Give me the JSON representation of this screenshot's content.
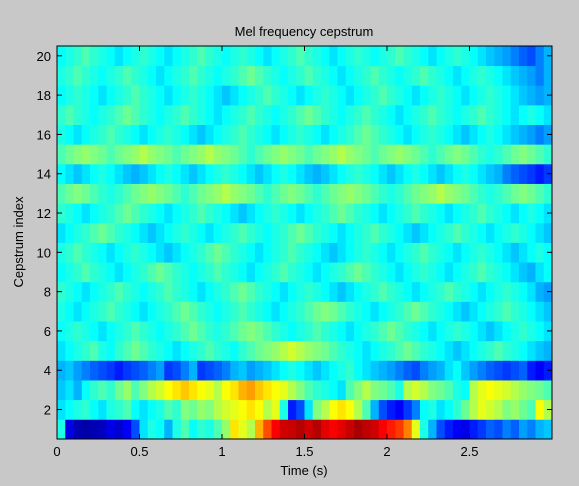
{
  "chart_data": {
    "type": "heatmap",
    "title": "Mel frequency cepstrum",
    "xlabel": "Time (s)",
    "ylabel": "Cepstrum index",
    "xlim": [
      0,
      3.0
    ],
    "ylim": [
      0.5,
      20.5
    ],
    "x_ticks": [
      0,
      0.5,
      1,
      1.5,
      2,
      2.5
    ],
    "x_tick_labels": [
      "0",
      "0.5",
      "1",
      "1.5",
      "2",
      "2.5"
    ],
    "y_ticks": [
      2,
      4,
      6,
      8,
      10,
      12,
      14,
      16,
      18,
      20
    ],
    "y_tick_labels": [
      "2",
      "4",
      "6",
      "8",
      "10",
      "12",
      "14",
      "16",
      "18",
      "20"
    ],
    "colormap": "jet",
    "rows": 20,
    "row_description": "cepstrum index 1 (bottom) to 20 (top)",
    "time_step": 0.05,
    "grid": false,
    "legend": "none",
    "values_scale": "relative intensity 0 (dark blue) to 1 (dark red)",
    "values": [
      [
        0.4,
        0.1,
        0.05,
        0.04,
        0.05,
        0.06,
        0.1,
        0.08,
        0.12,
        0.2,
        0.35,
        0.4,
        0.38,
        0.3,
        0.4,
        0.45,
        0.38,
        0.42,
        0.4,
        0.45,
        0.52,
        0.65,
        0.6,
        0.55,
        0.7,
        0.8,
        0.88,
        0.92,
        0.93,
        0.95,
        0.92,
        0.95,
        0.9,
        0.88,
        0.9,
        0.93,
        0.96,
        0.94,
        0.92,
        0.88,
        0.85,
        0.82,
        0.75,
        0.6,
        0.4,
        0.3,
        0.2,
        0.15,
        0.12,
        0.1,
        0.15,
        0.18,
        0.22,
        0.2,
        0.25,
        0.22,
        0.28,
        0.25,
        0.3,
        0.32
      ],
      [
        0.35,
        0.38,
        0.4,
        0.42,
        0.38,
        0.35,
        0.4,
        0.42,
        0.45,
        0.38,
        0.35,
        0.38,
        0.4,
        0.45,
        0.42,
        0.5,
        0.48,
        0.52,
        0.5,
        0.55,
        0.58,
        0.6,
        0.62,
        0.65,
        0.62,
        0.55,
        0.6,
        0.4,
        0.15,
        0.2,
        0.35,
        0.5,
        0.55,
        0.62,
        0.65,
        0.62,
        0.55,
        0.45,
        0.3,
        0.2,
        0.15,
        0.12,
        0.18,
        0.25,
        0.38,
        0.4,
        0.35,
        0.38,
        0.42,
        0.48,
        0.55,
        0.6,
        0.58,
        0.55,
        0.5,
        0.52,
        0.48,
        0.45,
        0.62,
        0.55
      ],
      [
        0.32,
        0.35,
        0.3,
        0.38,
        0.42,
        0.45,
        0.42,
        0.48,
        0.52,
        0.45,
        0.5,
        0.55,
        0.58,
        0.62,
        0.65,
        0.68,
        0.65,
        0.62,
        0.6,
        0.55,
        0.62,
        0.65,
        0.7,
        0.72,
        0.68,
        0.65,
        0.62,
        0.6,
        0.55,
        0.5,
        0.45,
        0.42,
        0.4,
        0.38,
        0.35,
        0.45,
        0.5,
        0.55,
        0.5,
        0.48,
        0.45,
        0.4,
        0.55,
        0.58,
        0.55,
        0.5,
        0.48,
        0.45,
        0.4,
        0.38,
        0.55,
        0.6,
        0.62,
        0.6,
        0.58,
        0.55,
        0.52,
        0.5,
        0.48,
        0.45
      ],
      [
        0.3,
        0.32,
        0.28,
        0.25,
        0.22,
        0.2,
        0.18,
        0.15,
        0.18,
        0.2,
        0.22,
        0.25,
        0.28,
        0.18,
        0.2,
        0.25,
        0.3,
        0.18,
        0.2,
        0.22,
        0.25,
        0.3,
        0.32,
        0.28,
        0.3,
        0.32,
        0.35,
        0.38,
        0.4,
        0.38,
        0.35,
        0.32,
        0.35,
        0.38,
        0.4,
        0.42,
        0.38,
        0.35,
        0.32,
        0.3,
        0.28,
        0.25,
        0.22,
        0.2,
        0.25,
        0.28,
        0.3,
        0.35,
        0.38,
        0.32,
        0.28,
        0.25,
        0.22,
        0.2,
        0.18,
        0.2,
        0.22,
        0.15,
        0.12,
        0.15
      ],
      [
        0.35,
        0.38,
        0.4,
        0.42,
        0.45,
        0.4,
        0.38,
        0.42,
        0.45,
        0.48,
        0.45,
        0.42,
        0.4,
        0.38,
        0.35,
        0.38,
        0.4,
        0.42,
        0.45,
        0.42,
        0.4,
        0.38,
        0.42,
        0.45,
        0.48,
        0.5,
        0.52,
        0.55,
        0.58,
        0.55,
        0.52,
        0.5,
        0.48,
        0.45,
        0.42,
        0.4,
        0.38,
        0.35,
        0.38,
        0.4,
        0.42,
        0.45,
        0.48,
        0.45,
        0.42,
        0.4,
        0.38,
        0.35,
        0.32,
        0.35,
        0.38,
        0.4,
        0.42,
        0.45,
        0.42,
        0.4,
        0.38,
        0.35,
        0.32,
        0.3
      ],
      [
        0.38,
        0.4,
        0.42,
        0.4,
        0.38,
        0.35,
        0.38,
        0.4,
        0.42,
        0.45,
        0.42,
        0.4,
        0.38,
        0.4,
        0.42,
        0.45,
        0.48,
        0.45,
        0.42,
        0.4,
        0.42,
        0.45,
        0.48,
        0.5,
        0.48,
        0.45,
        0.42,
        0.4,
        0.38,
        0.4,
        0.42,
        0.45,
        0.42,
        0.4,
        0.38,
        0.35,
        0.38,
        0.4,
        0.42,
        0.45,
        0.48,
        0.45,
        0.42,
        0.4,
        0.38,
        0.35,
        0.38,
        0.4,
        0.42,
        0.4,
        0.38,
        0.35,
        0.32,
        0.35,
        0.38,
        0.4,
        0.42,
        0.4,
        0.38,
        0.35
      ],
      [
        0.4,
        0.38,
        0.35,
        0.38,
        0.4,
        0.42,
        0.45,
        0.42,
        0.4,
        0.38,
        0.35,
        0.38,
        0.4,
        0.42,
        0.45,
        0.48,
        0.45,
        0.42,
        0.4,
        0.38,
        0.4,
        0.42,
        0.45,
        0.42,
        0.4,
        0.38,
        0.35,
        0.38,
        0.4,
        0.42,
        0.45,
        0.48,
        0.5,
        0.48,
        0.45,
        0.42,
        0.4,
        0.38,
        0.35,
        0.38,
        0.4,
        0.42,
        0.45,
        0.48,
        0.45,
        0.42,
        0.4,
        0.38,
        0.35,
        0.32,
        0.35,
        0.38,
        0.4,
        0.42,
        0.45,
        0.42,
        0.4,
        0.38,
        0.35,
        0.32
      ],
      [
        0.42,
        0.4,
        0.38,
        0.35,
        0.38,
        0.4,
        0.42,
        0.45,
        0.42,
        0.4,
        0.38,
        0.4,
        0.42,
        0.45,
        0.42,
        0.4,
        0.38,
        0.35,
        0.38,
        0.4,
        0.42,
        0.45,
        0.48,
        0.45,
        0.42,
        0.4,
        0.38,
        0.35,
        0.38,
        0.4,
        0.42,
        0.4,
        0.38,
        0.35,
        0.32,
        0.35,
        0.38,
        0.4,
        0.42,
        0.45,
        0.42,
        0.4,
        0.38,
        0.35,
        0.38,
        0.4,
        0.42,
        0.45,
        0.42,
        0.4,
        0.38,
        0.35,
        0.38,
        0.4,
        0.42,
        0.4,
        0.38,
        0.35,
        0.3,
        0.28
      ],
      [
        0.38,
        0.4,
        0.42,
        0.45,
        0.42,
        0.4,
        0.38,
        0.35,
        0.38,
        0.4,
        0.42,
        0.45,
        0.48,
        0.45,
        0.42,
        0.4,
        0.38,
        0.4,
        0.42,
        0.45,
        0.42,
        0.4,
        0.38,
        0.35,
        0.38,
        0.4,
        0.42,
        0.45,
        0.42,
        0.4,
        0.38,
        0.35,
        0.38,
        0.4,
        0.42,
        0.45,
        0.48,
        0.45,
        0.42,
        0.4,
        0.38,
        0.35,
        0.38,
        0.4,
        0.42,
        0.4,
        0.38,
        0.35,
        0.38,
        0.4,
        0.42,
        0.45,
        0.42,
        0.4,
        0.38,
        0.35,
        0.32,
        0.3,
        0.35,
        0.38
      ],
      [
        0.4,
        0.42,
        0.45,
        0.42,
        0.4,
        0.38,
        0.35,
        0.38,
        0.4,
        0.42,
        0.4,
        0.38,
        0.35,
        0.32,
        0.35,
        0.38,
        0.4,
        0.42,
        0.45,
        0.48,
        0.45,
        0.42,
        0.4,
        0.38,
        0.35,
        0.38,
        0.4,
        0.42,
        0.45,
        0.42,
        0.4,
        0.38,
        0.35,
        0.32,
        0.35,
        0.38,
        0.4,
        0.42,
        0.4,
        0.38,
        0.35,
        0.38,
        0.4,
        0.42,
        0.45,
        0.42,
        0.4,
        0.38,
        0.35,
        0.38,
        0.4,
        0.42,
        0.4,
        0.38,
        0.35,
        0.32,
        0.35,
        0.38,
        0.4,
        0.38
      ],
      [
        0.35,
        0.38,
        0.4,
        0.42,
        0.45,
        0.48,
        0.45,
        0.42,
        0.4,
        0.38,
        0.35,
        0.32,
        0.35,
        0.38,
        0.4,
        0.42,
        0.4,
        0.38,
        0.35,
        0.38,
        0.4,
        0.42,
        0.45,
        0.42,
        0.4,
        0.38,
        0.4,
        0.42,
        0.45,
        0.48,
        0.45,
        0.42,
        0.4,
        0.38,
        0.35,
        0.38,
        0.4,
        0.42,
        0.45,
        0.42,
        0.4,
        0.38,
        0.35,
        0.32,
        0.35,
        0.38,
        0.4,
        0.42,
        0.45,
        0.42,
        0.4,
        0.38,
        0.35,
        0.38,
        0.4,
        0.42,
        0.4,
        0.38,
        0.35,
        0.32
      ],
      [
        0.42,
        0.4,
        0.38,
        0.35,
        0.38,
        0.4,
        0.42,
        0.45,
        0.48,
        0.45,
        0.42,
        0.4,
        0.38,
        0.35,
        0.38,
        0.4,
        0.42,
        0.45,
        0.42,
        0.4,
        0.38,
        0.35,
        0.32,
        0.35,
        0.38,
        0.4,
        0.42,
        0.4,
        0.38,
        0.35,
        0.38,
        0.4,
        0.42,
        0.45,
        0.48,
        0.45,
        0.42,
        0.4,
        0.38,
        0.35,
        0.38,
        0.4,
        0.42,
        0.45,
        0.42,
        0.4,
        0.38,
        0.35,
        0.38,
        0.4,
        0.42,
        0.45,
        0.42,
        0.4,
        0.38,
        0.35,
        0.38,
        0.4,
        0.38,
        0.35
      ],
      [
        0.45,
        0.48,
        0.5,
        0.48,
        0.45,
        0.42,
        0.4,
        0.42,
        0.45,
        0.48,
        0.5,
        0.52,
        0.5,
        0.48,
        0.45,
        0.42,
        0.45,
        0.48,
        0.5,
        0.52,
        0.55,
        0.52,
        0.5,
        0.48,
        0.45,
        0.42,
        0.45,
        0.48,
        0.5,
        0.48,
        0.45,
        0.42,
        0.45,
        0.48,
        0.5,
        0.52,
        0.5,
        0.48,
        0.45,
        0.42,
        0.4,
        0.42,
        0.45,
        0.48,
        0.5,
        0.52,
        0.55,
        0.52,
        0.5,
        0.48,
        0.45,
        0.42,
        0.4,
        0.42,
        0.45,
        0.48,
        0.5,
        0.48,
        0.45,
        0.42
      ],
      [
        0.38,
        0.35,
        0.32,
        0.35,
        0.38,
        0.4,
        0.38,
        0.35,
        0.32,
        0.3,
        0.32,
        0.35,
        0.38,
        0.4,
        0.38,
        0.35,
        0.32,
        0.35,
        0.38,
        0.4,
        0.42,
        0.4,
        0.38,
        0.35,
        0.32,
        0.35,
        0.38,
        0.4,
        0.38,
        0.35,
        0.32,
        0.3,
        0.32,
        0.35,
        0.38,
        0.4,
        0.42,
        0.4,
        0.38,
        0.35,
        0.32,
        0.35,
        0.38,
        0.4,
        0.38,
        0.35,
        0.32,
        0.35,
        0.38,
        0.4,
        0.38,
        0.35,
        0.32,
        0.3,
        0.25,
        0.22,
        0.2,
        0.18,
        0.15,
        0.18
      ],
      [
        0.45,
        0.48,
        0.5,
        0.52,
        0.5,
        0.48,
        0.45,
        0.48,
        0.5,
        0.52,
        0.55,
        0.52,
        0.5,
        0.48,
        0.45,
        0.48,
        0.5,
        0.52,
        0.55,
        0.52,
        0.5,
        0.48,
        0.45,
        0.42,
        0.45,
        0.48,
        0.5,
        0.52,
        0.5,
        0.48,
        0.45,
        0.48,
        0.5,
        0.52,
        0.55,
        0.52,
        0.5,
        0.48,
        0.45,
        0.48,
        0.5,
        0.52,
        0.5,
        0.48,
        0.45,
        0.42,
        0.45,
        0.48,
        0.5,
        0.48,
        0.45,
        0.42,
        0.4,
        0.42,
        0.45,
        0.48,
        0.5,
        0.48,
        0.45,
        0.42
      ],
      [
        0.4,
        0.38,
        0.35,
        0.38,
        0.4,
        0.42,
        0.45,
        0.42,
        0.4,
        0.38,
        0.35,
        0.38,
        0.4,
        0.42,
        0.4,
        0.38,
        0.35,
        0.32,
        0.35,
        0.38,
        0.4,
        0.42,
        0.45,
        0.42,
        0.4,
        0.38,
        0.35,
        0.38,
        0.4,
        0.42,
        0.4,
        0.38,
        0.35,
        0.38,
        0.4,
        0.42,
        0.45,
        0.48,
        0.45,
        0.42,
        0.4,
        0.38,
        0.35,
        0.38,
        0.4,
        0.42,
        0.4,
        0.38,
        0.35,
        0.32,
        0.35,
        0.38,
        0.4,
        0.38,
        0.35,
        0.32,
        0.3,
        0.28,
        0.25,
        0.28
      ],
      [
        0.42,
        0.45,
        0.42,
        0.4,
        0.38,
        0.4,
        0.42,
        0.45,
        0.48,
        0.45,
        0.42,
        0.4,
        0.38,
        0.4,
        0.42,
        0.45,
        0.42,
        0.4,
        0.38,
        0.35,
        0.38,
        0.4,
        0.42,
        0.45,
        0.42,
        0.4,
        0.38,
        0.4,
        0.42,
        0.45,
        0.48,
        0.45,
        0.42,
        0.4,
        0.38,
        0.4,
        0.42,
        0.45,
        0.42,
        0.4,
        0.38,
        0.35,
        0.38,
        0.4,
        0.42,
        0.45,
        0.42,
        0.4,
        0.38,
        0.4,
        0.42,
        0.45,
        0.42,
        0.4,
        0.38,
        0.35,
        0.38,
        0.4,
        0.38,
        0.35
      ],
      [
        0.38,
        0.4,
        0.42,
        0.4,
        0.38,
        0.35,
        0.38,
        0.4,
        0.42,
        0.45,
        0.42,
        0.4,
        0.38,
        0.35,
        0.38,
        0.4,
        0.42,
        0.4,
        0.38,
        0.35,
        0.32,
        0.35,
        0.38,
        0.4,
        0.42,
        0.45,
        0.42,
        0.4,
        0.38,
        0.35,
        0.38,
        0.4,
        0.42,
        0.4,
        0.38,
        0.35,
        0.38,
        0.4,
        0.42,
        0.45,
        0.42,
        0.4,
        0.38,
        0.35,
        0.38,
        0.4,
        0.42,
        0.4,
        0.38,
        0.35,
        0.38,
        0.4,
        0.42,
        0.4,
        0.38,
        0.35,
        0.32,
        0.3,
        0.28,
        0.3
      ],
      [
        0.4,
        0.42,
        0.45,
        0.42,
        0.4,
        0.38,
        0.4,
        0.42,
        0.45,
        0.42,
        0.4,
        0.38,
        0.35,
        0.38,
        0.4,
        0.42,
        0.45,
        0.42,
        0.4,
        0.38,
        0.4,
        0.42,
        0.45,
        0.48,
        0.45,
        0.42,
        0.4,
        0.38,
        0.4,
        0.42,
        0.45,
        0.42,
        0.4,
        0.38,
        0.35,
        0.38,
        0.4,
        0.42,
        0.45,
        0.42,
        0.4,
        0.38,
        0.4,
        0.42,
        0.45,
        0.42,
        0.4,
        0.38,
        0.35,
        0.38,
        0.4,
        0.42,
        0.4,
        0.38,
        0.35,
        0.32,
        0.3,
        0.28,
        0.25,
        0.3
      ],
      [
        0.38,
        0.4,
        0.42,
        0.45,
        0.42,
        0.4,
        0.38,
        0.35,
        0.38,
        0.4,
        0.42,
        0.4,
        0.38,
        0.35,
        0.38,
        0.4,
        0.42,
        0.45,
        0.42,
        0.4,
        0.38,
        0.4,
        0.42,
        0.4,
        0.38,
        0.35,
        0.38,
        0.4,
        0.42,
        0.45,
        0.42,
        0.4,
        0.38,
        0.35,
        0.38,
        0.4,
        0.42,
        0.4,
        0.38,
        0.4,
        0.42,
        0.45,
        0.42,
        0.4,
        0.38,
        0.35,
        0.38,
        0.4,
        0.42,
        0.4,
        0.38,
        0.35,
        0.32,
        0.3,
        0.28,
        0.25,
        0.22,
        0.2,
        0.25,
        0.3
      ]
    ]
  }
}
